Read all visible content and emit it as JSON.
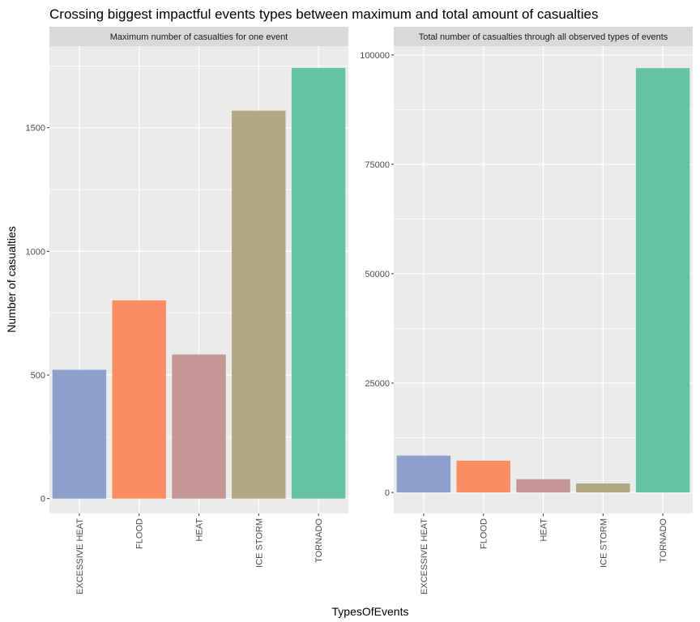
{
  "title": "Crossing biggest impactful events types between maximum and total amount of casualties",
  "ylabel": "Number of casualties",
  "xlabel": "TypesOfEvents",
  "categories": [
    "EXCESSIVE HEAT",
    "FLOOD",
    "HEAT",
    "ICE STORM",
    "TORNADO"
  ],
  "colors": {
    "EXCESSIVE HEAT": "#8DA0CB",
    "FLOOD": "#FC8D62",
    "HEAT": "#C49694",
    "ICE STORM": "#B2A782",
    "TORNADO": "#66C2A5",
    "panel_bg": "#EBEBEB",
    "strip_bg": "#D9D9D9",
    "grid": "#FFFFFF"
  },
  "chart_data": [
    {
      "type": "bar",
      "facet_label": "Maximum number of casualties for one event",
      "categories": [
        "EXCESSIVE HEAT",
        "FLOOD",
        "HEAT",
        "ICE STORM",
        "TORNADO"
      ],
      "values": [
        521,
        802,
        583,
        1569,
        1742
      ],
      "ylim": [
        -60,
        1830
      ],
      "yticks": [
        0,
        500,
        1000,
        1500
      ],
      "ytick_labels": [
        "0",
        "500",
        "1000",
        "1500"
      ],
      "grid": true
    },
    {
      "type": "bar",
      "facet_label": "Total number of casualties through all observed types of events",
      "categories": [
        "EXCESSIVE HEAT",
        "FLOOD",
        "HEAT",
        "ICE STORM",
        "TORNADO"
      ],
      "values": [
        8428,
        7259,
        3037,
        2064,
        96979
      ],
      "ylim": [
        -4800,
        102000
      ],
      "yticks": [
        0,
        25000,
        50000,
        75000,
        100000
      ],
      "ytick_labels": [
        "0",
        "25000",
        "50000",
        "75000",
        "100000"
      ],
      "grid": true
    }
  ]
}
